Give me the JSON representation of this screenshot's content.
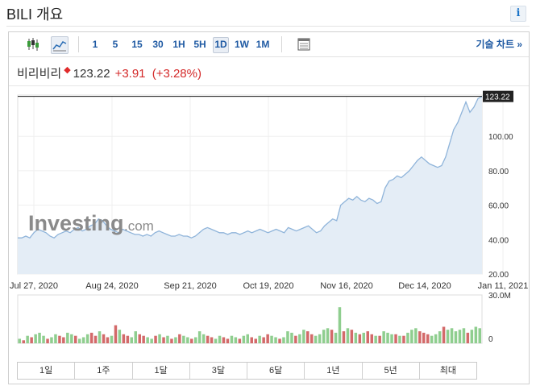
{
  "header": {
    "title": "BILI 개요",
    "info_icon": "i"
  },
  "toolbar": {
    "icons": [
      "candlestick-chart-icon",
      "area-chart-icon",
      "table-icon"
    ],
    "intervals": [
      "1",
      "5",
      "15",
      "30",
      "1H",
      "5H",
      "1D",
      "1W",
      "1M"
    ],
    "active_interval": "1D",
    "advanced_chart_label": "기술 차트 »"
  },
  "quote": {
    "name": "비리비리",
    "price": "123.22",
    "change": "+3.91",
    "change_pct": "(+3.28%)"
  },
  "colors": {
    "line": "#8fb4da",
    "fill": "#e4edf6",
    "up_bar": "#8fce8f",
    "down_bar": "#d36a6a",
    "change": "#d42a2a"
  },
  "watermark": {
    "brand": "Investing",
    "suffix": ".com"
  },
  "chart_data": {
    "type": "area",
    "symbol": "BILI",
    "last_price_label": "123.22",
    "y_ticks": [
      "100.00",
      "80.00",
      "60.00",
      "40.00",
      "20.00"
    ],
    "ylim": [
      20,
      124
    ],
    "x_tick_labels": [
      "Jul 27, 2020",
      "Aug 24, 2020",
      "Sep 21, 2020",
      "Oct 19, 2020",
      "Nov 16, 2020",
      "Dec 14, 2020",
      "Jan 11, 2021"
    ],
    "x_start": "Jul 27, 2020",
    "prices": [
      41,
      41,
      42,
      41,
      44,
      46,
      45,
      44,
      42,
      41,
      43,
      44,
      45,
      44,
      46,
      47,
      45,
      46,
      48,
      49,
      52,
      51,
      48,
      46,
      45,
      44,
      46,
      45,
      44,
      43,
      43,
      42,
      43,
      42,
      44,
      45,
      44,
      43,
      42,
      42,
      43,
      42,
      42,
      41,
      42,
      44,
      46,
      47,
      46,
      45,
      44,
      44,
      43,
      44,
      44,
      43,
      44,
      45,
      44,
      45,
      46,
      45,
      44,
      45,
      46,
      45,
      44,
      47,
      46,
      45,
      46,
      47,
      48,
      46,
      44,
      45,
      48,
      50,
      52,
      51,
      60,
      62,
      64,
      63,
      65,
      63,
      62,
      64,
      63,
      61,
      62,
      70,
      74,
      75,
      77,
      76,
      78,
      80,
      83,
      86,
      88,
      86,
      84,
      83,
      82,
      83,
      88,
      96,
      104,
      108,
      114,
      120,
      114,
      117,
      122,
      123.22
    ],
    "volume_axis": {
      "max_label": "30.0M",
      "zero_label": "0",
      "max": 30
    },
    "volumes": [
      [
        3,
        1
      ],
      [
        2,
        0
      ],
      [
        5,
        1
      ],
      [
        4,
        0
      ],
      [
        6,
        1
      ],
      [
        7,
        1
      ],
      [
        5,
        1
      ],
      [
        3,
        0
      ],
      [
        4,
        1
      ],
      [
        6,
        1
      ],
      [
        5,
        0
      ],
      [
        4,
        0
      ],
      [
        7,
        1
      ],
      [
        6,
        1
      ],
      [
        5,
        0
      ],
      [
        3,
        1
      ],
      [
        4,
        1
      ],
      [
        6,
        1
      ],
      [
        7,
        0
      ],
      [
        5,
        0
      ],
      [
        8,
        1
      ],
      [
        6,
        0
      ],
      [
        4,
        0
      ],
      [
        5,
        1
      ],
      [
        12,
        0
      ],
      [
        9,
        1
      ],
      [
        6,
        0
      ],
      [
        5,
        0
      ],
      [
        4,
        1
      ],
      [
        8,
        1
      ],
      [
        6,
        0
      ],
      [
        5,
        0
      ],
      [
        4,
        1
      ],
      [
        3,
        1
      ],
      [
        5,
        0
      ],
      [
        6,
        1
      ],
      [
        4,
        0
      ],
      [
        5,
        1
      ],
      [
        3,
        0
      ],
      [
        4,
        1
      ],
      [
        6,
        0
      ],
      [
        5,
        1
      ],
      [
        4,
        1
      ],
      [
        3,
        0
      ],
      [
        4,
        1
      ],
      [
        8,
        1
      ],
      [
        6,
        1
      ],
      [
        5,
        0
      ],
      [
        4,
        0
      ],
      [
        3,
        1
      ],
      [
        5,
        1
      ],
      [
        4,
        0
      ],
      [
        3,
        0
      ],
      [
        5,
        1
      ],
      [
        4,
        1
      ],
      [
        3,
        0
      ],
      [
        5,
        1
      ],
      [
        6,
        1
      ],
      [
        4,
        0
      ],
      [
        3,
        0
      ],
      [
        5,
        1
      ],
      [
        4,
        0
      ],
      [
        6,
        0
      ],
      [
        5,
        1
      ],
      [
        4,
        1
      ],
      [
        3,
        0
      ],
      [
        4,
        1
      ],
      [
        8,
        1
      ],
      [
        7,
        1
      ],
      [
        5,
        0
      ],
      [
        6,
        1
      ],
      [
        9,
        1
      ],
      [
        8,
        0
      ],
      [
        6,
        0
      ],
      [
        5,
        1
      ],
      [
        6,
        1
      ],
      [
        9,
        1
      ],
      [
        10,
        1
      ],
      [
        9,
        0
      ],
      [
        7,
        1
      ],
      [
        24,
        1
      ],
      [
        8,
        0
      ],
      [
        10,
        1
      ],
      [
        9,
        0
      ],
      [
        7,
        1
      ],
      [
        6,
        0
      ],
      [
        7,
        1
      ],
      [
        8,
        0
      ],
      [
        6,
        0
      ],
      [
        5,
        1
      ],
      [
        5,
        0
      ],
      [
        8,
        1
      ],
      [
        7,
        1
      ],
      [
        6,
        1
      ],
      [
        6,
        0
      ],
      [
        5,
        1
      ],
      [
        5,
        0
      ],
      [
        7,
        1
      ],
      [
        9,
        1
      ],
      [
        10,
        1
      ],
      [
        8,
        0
      ],
      [
        7,
        0
      ],
      [
        6,
        0
      ],
      [
        5,
        1
      ],
      [
        6,
        1
      ],
      [
        8,
        1
      ],
      [
        11,
        0
      ],
      [
        9,
        1
      ],
      [
        10,
        1
      ],
      [
        8,
        1
      ],
      [
        9,
        1
      ],
      [
        10,
        1
      ],
      [
        7,
        0
      ],
      [
        9,
        1
      ],
      [
        11,
        1
      ],
      [
        10,
        1
      ]
    ]
  },
  "period_buttons": [
    "1일",
    "1주",
    "1달",
    "3달",
    "6달",
    "1년",
    "5년",
    "최대"
  ]
}
